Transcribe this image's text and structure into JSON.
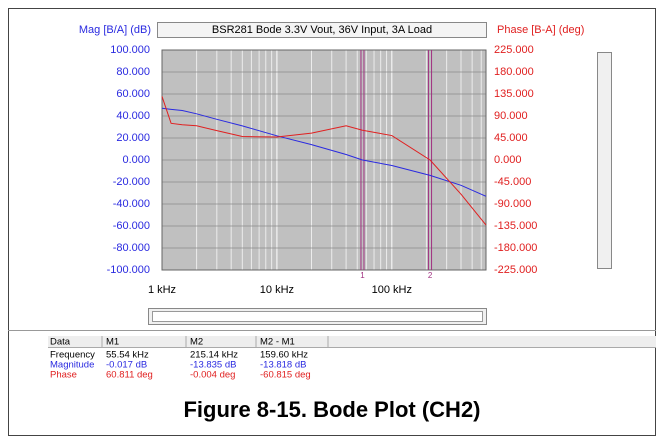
{
  "chart_data": {
    "type": "line",
    "title": "BSR281 Bode 3.3V Vout, 36V Input, 3A Load",
    "y_label": "Mag [B/A] (dB)",
    "y2_label": "Phase [B-A] (deg)",
    "x_scale": "log",
    "grid": true,
    "x": [
      1000,
      1200,
      1500,
      2000,
      3000,
      5000,
      10000,
      20000,
      40000,
      55540,
      100000,
      215140,
      400000,
      660000
    ],
    "series": [
      {
        "color": "#2a2ae0",
        "values": [
          47,
          46,
          45,
          42,
          37,
          31,
          22,
          14,
          5,
          0,
          -5,
          -14,
          -23,
          -33
        ]
      },
      {
        "color": "#e02020",
        "axis": "y2",
        "values": [
          130,
          75,
          72,
          70,
          60,
          48,
          47,
          55,
          70,
          60.8,
          50,
          0,
          -70,
          -133
        ]
      }
    ],
    "xlim": [
      1000,
      660000
    ],
    "xticks": [
      {
        "value": 1000,
        "label": "1 kHz"
      },
      {
        "value": 10000,
        "label": "10 kHz"
      },
      {
        "value": 100000,
        "label": "100 kHz"
      }
    ],
    "xminorticks": [
      2000,
      3000,
      4000,
      5000,
      6000,
      7000,
      8000,
      9000,
      20000,
      30000,
      40000,
      50000,
      60000,
      70000,
      80000,
      90000,
      200000,
      300000,
      400000,
      500000,
      600000
    ],
    "ylim": [
      -100,
      100
    ],
    "yticks": [
      {
        "value": 100,
        "label": "100.000"
      },
      {
        "value": 80,
        "label": "80.000"
      },
      {
        "value": 60,
        "label": "60.000"
      },
      {
        "value": 40,
        "label": "40.000"
      },
      {
        "value": 20,
        "label": "20.000"
      },
      {
        "value": 0,
        "label": "0.000"
      },
      {
        "value": -20,
        "label": "-20.000"
      },
      {
        "value": -40,
        "label": "-40.000"
      },
      {
        "value": -60,
        "label": "-60.000"
      },
      {
        "value": -80,
        "label": "-80.000"
      },
      {
        "value": -100,
        "label": "-100.000"
      }
    ],
    "y2lim": [
      -225,
      225
    ],
    "y2ticks": [
      {
        "value": 225,
        "label": "225.000"
      },
      {
        "value": 180,
        "label": "180.000"
      },
      {
        "value": 135,
        "label": "135.000"
      },
      {
        "value": 90,
        "label": "90.000"
      },
      {
        "value": 45,
        "label": "45.000"
      },
      {
        "value": 0,
        "label": "0.000"
      },
      {
        "value": -45,
        "label": "-45.000"
      },
      {
        "value": -90,
        "label": "-90.000"
      },
      {
        "value": -135,
        "label": "-135.000"
      },
      {
        "value": -180,
        "label": "-180.000"
      },
      {
        "value": -225,
        "label": "-225.000"
      }
    ],
    "markers": [
      {
        "label": "1",
        "x": 55540
      },
      {
        "label": "2",
        "x": 215140
      }
    ]
  },
  "table": {
    "columns": [
      "Data",
      "M1",
      "M2",
      "M2 - M1"
    ],
    "rows": [
      [
        "Frequency",
        "55.54 kHz",
        "215.14 kHz",
        "159.60 kHz"
      ],
      [
        "Magnitude",
        "-0.017 dB",
        "-13.835 dB",
        "-13.818 dB"
      ],
      [
        "Phase",
        "60.811 deg",
        "-0.004 deg",
        "-60.815 deg"
      ]
    ]
  },
  "caption": "Figure 8-15. Bode Plot (CH2)"
}
